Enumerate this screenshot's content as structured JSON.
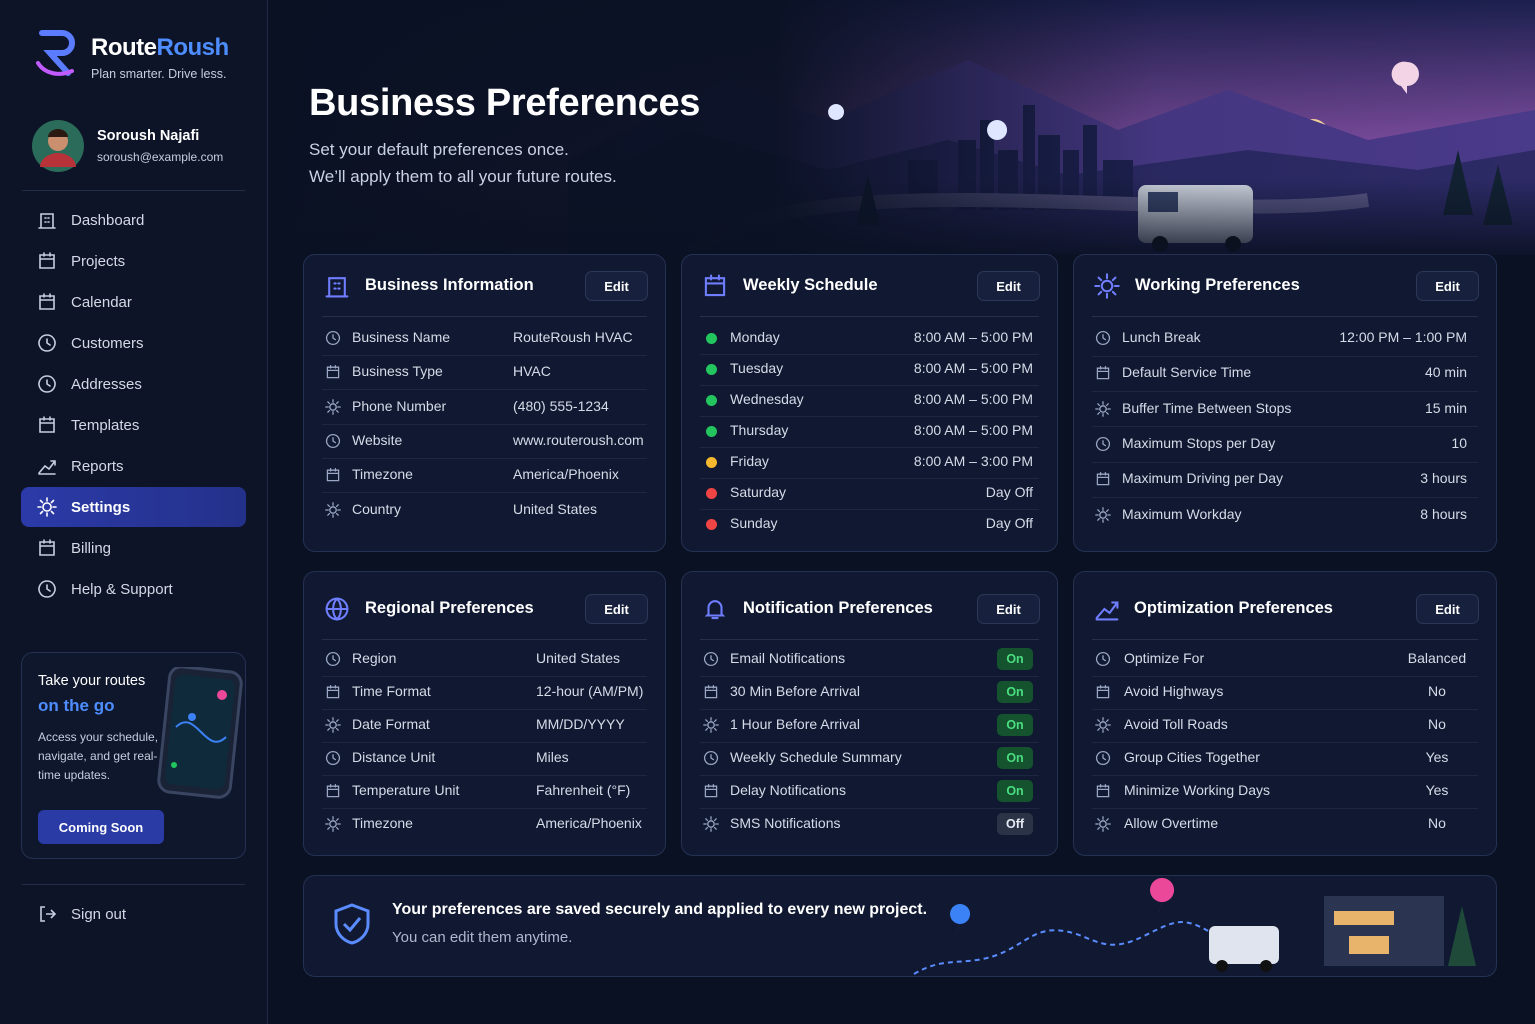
{
  "brand": {
    "name_a": "Route",
    "name_b": "Roush",
    "tagline": "Plan smarter. Drive less."
  },
  "user": {
    "name": "Soroush Najafi",
    "email": "soroush@example.com"
  },
  "nav": {
    "items": [
      {
        "label": "Dashboard"
      },
      {
        "label": "Projects"
      },
      {
        "label": "Calendar"
      },
      {
        "label": "Customers"
      },
      {
        "label": "Addresses"
      },
      {
        "label": "Templates"
      },
      {
        "label": "Reports"
      },
      {
        "label": "Settings",
        "active": true
      },
      {
        "label": "Billing"
      },
      {
        "label": "Help & Support"
      }
    ],
    "signout": "Sign out"
  },
  "promo": {
    "title": "Take your routes",
    "highlight": "on the go",
    "text": "Access your schedule, navigate, and get real-time updates.",
    "button": "Coming Soon"
  },
  "header": {
    "title": "Business Preferences",
    "subtitle": [
      "Set your default preferences once.",
      "We’ll apply them to all your future routes."
    ]
  },
  "cards": [
    {
      "title": "Business Information",
      "edit": "Edit",
      "rows": [
        {
          "label": "Business Name",
          "value": "RouteRoush HVAC"
        },
        {
          "label": "Business Type",
          "value": "HVAC"
        },
        {
          "label": "Phone Number",
          "value": "(480) 555-1234"
        },
        {
          "label": "Website",
          "value": "www.routeroush.com"
        },
        {
          "label": "Timezone",
          "value": "America/Phoenix"
        },
        {
          "label": "Country",
          "value": "United States"
        }
      ]
    },
    {
      "title": "Weekly Schedule",
      "edit": "Edit",
      "rows": [
        {
          "label": "Monday",
          "value": "8:00 AM – 5:00 PM",
          "dot": "#22c55e"
        },
        {
          "label": "Tuesday",
          "value": "8:00 AM – 5:00 PM",
          "dot": "#22c55e"
        },
        {
          "label": "Wednesday",
          "value": "8:00 AM – 5:00 PM",
          "dot": "#22c55e"
        },
        {
          "label": "Thursday",
          "value": "8:00 AM – 5:00 PM",
          "dot": "#22c55e"
        },
        {
          "label": "Friday",
          "value": "8:00 AM – 3:00 PM",
          "dot": "#f5b82e"
        },
        {
          "label": "Saturday",
          "value": "Day Off",
          "dot": "#ef4444"
        },
        {
          "label": "Sunday",
          "value": "Day Off",
          "dot": "#ef4444"
        }
      ]
    },
    {
      "title": "Working Preferences",
      "edit": "Edit",
      "rows": [
        {
          "label": "Lunch Break",
          "value": "12:00 PM – 1:00 PM"
        },
        {
          "label": "Default Service Time",
          "value": "40 min"
        },
        {
          "label": "Buffer Time Between Stops",
          "value": "15 min"
        },
        {
          "label": "Maximum Stops per Day",
          "value": "10"
        },
        {
          "label": "Maximum Driving per Day",
          "value": "3 hours"
        },
        {
          "label": "Maximum Workday",
          "value": "8 hours"
        }
      ]
    },
    {
      "title": "Regional Preferences",
      "edit": "Edit",
      "rows": [
        {
          "label": "Region",
          "value": "United States"
        },
        {
          "label": "Time Format",
          "value": "12-hour (AM/PM)"
        },
        {
          "label": "Date Format",
          "value": "MM/DD/YYYY"
        },
        {
          "label": "Distance Unit",
          "value": "Miles"
        },
        {
          "label": "Temperature Unit",
          "value": "Fahrenheit (°F)"
        },
        {
          "label": "Timezone",
          "value": "America/Phoenix"
        }
      ]
    },
    {
      "title": "Notification Preferences",
      "edit": "Edit",
      "rows": [
        {
          "label": "Email Notifications",
          "value": "On",
          "badge_color": "#15532f"
        },
        {
          "label": "30 Min Before Arrival",
          "value": "On",
          "badge_color": "#15532f"
        },
        {
          "label": "1 Hour Before Arrival",
          "value": "On",
          "badge_color": "#15532f"
        },
        {
          "label": "Weekly Schedule Summary",
          "value": "On",
          "badge_color": "#15532f"
        },
        {
          "label": "Delay Notifications",
          "value": "On",
          "badge_color": "#15532f"
        },
        {
          "label": "SMS Notifications",
          "value": "Off",
          "badge_color": "#2b3446"
        }
      ]
    },
    {
      "title": "Optimization Preferences",
      "edit": "Edit",
      "rows": [
        {
          "label": "Optimize For",
          "value": "Balanced"
        },
        {
          "label": "Avoid Highways",
          "value": "No"
        },
        {
          "label": "Avoid Toll Roads",
          "value": "No"
        },
        {
          "label": "Group Cities Together",
          "value": "Yes"
        },
        {
          "label": "Minimize Working Days",
          "value": "Yes"
        },
        {
          "label": "Allow Overtime",
          "value": "No"
        }
      ]
    }
  ],
  "footer": {
    "title": "Your preferences are saved securely and applied to every new project.",
    "text": "You can edit them anytime."
  }
}
